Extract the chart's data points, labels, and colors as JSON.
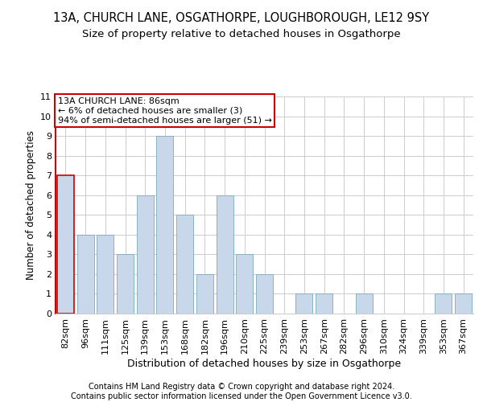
{
  "title1": "13A, CHURCH LANE, OSGATHORPE, LOUGHBOROUGH, LE12 9SY",
  "title2": "Size of property relative to detached houses in Osgathorpe",
  "xlabel": "Distribution of detached houses by size in Osgathorpe",
  "ylabel": "Number of detached properties",
  "footer1": "Contains HM Land Registry data © Crown copyright and database right 2024.",
  "footer2": "Contains public sector information licensed under the Open Government Licence v3.0.",
  "annotation_line1": "13A CHURCH LANE: 86sqm",
  "annotation_line2": "← 6% of detached houses are smaller (3)",
  "annotation_line3": "94% of semi-detached houses are larger (51) →",
  "categories": [
    "82sqm",
    "96sqm",
    "111sqm",
    "125sqm",
    "139sqm",
    "153sqm",
    "168sqm",
    "182sqm",
    "196sqm",
    "210sqm",
    "225sqm",
    "239sqm",
    "253sqm",
    "267sqm",
    "282sqm",
    "296sqm",
    "310sqm",
    "324sqm",
    "339sqm",
    "353sqm",
    "367sqm"
  ],
  "values": [
    7,
    4,
    4,
    3,
    6,
    9,
    5,
    2,
    6,
    3,
    2,
    0,
    1,
    1,
    0,
    1,
    0,
    0,
    0,
    1,
    1
  ],
  "bar_color": "#c8d8ea",
  "bar_edge_color": "#7aaabf",
  "highlight_edge_color": "#cc0000",
  "annotation_box_edge_color": "#cc0000",
  "ylim": [
    0,
    11
  ],
  "yticks": [
    0,
    1,
    2,
    3,
    4,
    5,
    6,
    7,
    8,
    9,
    10,
    11
  ],
  "grid_color": "#cccccc",
  "background_color": "#ffffff",
  "title1_fontsize": 10.5,
  "title2_fontsize": 9.5,
  "xlabel_fontsize": 9,
  "ylabel_fontsize": 8.5,
  "tick_fontsize": 8,
  "annotation_fontsize": 8,
  "footer_fontsize": 7
}
